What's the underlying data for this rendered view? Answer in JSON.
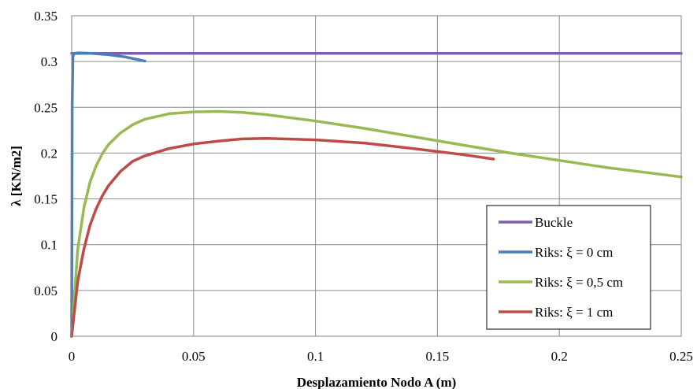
{
  "chart_data": {
    "type": "line",
    "xlabel": "Desplazamiento Nodo A (m)",
    "ylabel": "λ [KN/m2]",
    "xlim": [
      0,
      0.25
    ],
    "ylim": [
      0,
      0.35
    ],
    "xticks": [
      0,
      0.05,
      0.1,
      0.15,
      0.2,
      0.25
    ],
    "xtick_labels": [
      "0",
      "0.05",
      "0.1",
      "0.15",
      "0.2",
      "0.25"
    ],
    "yticks": [
      0,
      0.05,
      0.1,
      0.15,
      0.2,
      0.25,
      0.3,
      0.35
    ],
    "ytick_labels": [
      "0",
      "0.05",
      "0.1",
      "0.15",
      "0.2",
      "0.25",
      "0.3",
      "0.35"
    ],
    "grid": true,
    "legend_position": "bottom-right",
    "series": [
      {
        "name": "Buckle",
        "color": "#7F5FA8",
        "x": [
          0,
          0.25
        ],
        "y": [
          0.309,
          0.309
        ]
      },
      {
        "name": "Riks: ξ = 0 cm",
        "color": "#4A7EBB",
        "x": [
          0,
          0.0001,
          0.0002,
          0.0005,
          0.001,
          0.003,
          0.008,
          0.015,
          0.022,
          0.03
        ],
        "y": [
          0,
          0.1,
          0.25,
          0.305,
          0.309,
          0.3095,
          0.309,
          0.3075,
          0.305,
          0.3005
        ]
      },
      {
        "name": "Riks: ξ = 0,5 cm",
        "color": "#98B954",
        "x": [
          0,
          0.0025,
          0.005,
          0.0075,
          0.01,
          0.0125,
          0.015,
          0.02,
          0.025,
          0.03,
          0.04,
          0.05,
          0.06,
          0.07,
          0.08,
          0.1,
          0.12,
          0.14,
          0.16,
          0.18,
          0.2,
          0.22,
          0.25
        ],
        "y": [
          0,
          0.095,
          0.14,
          0.168,
          0.186,
          0.199,
          0.209,
          0.222,
          0.231,
          0.237,
          0.243,
          0.245,
          0.2455,
          0.2445,
          0.242,
          0.235,
          0.227,
          0.218,
          0.209,
          0.2,
          0.192,
          0.184,
          0.174
        ]
      },
      {
        "name": "Riks: ξ = 1 cm",
        "color": "#BE4B48",
        "x": [
          0,
          0.0025,
          0.005,
          0.0075,
          0.01,
          0.0125,
          0.015,
          0.02,
          0.025,
          0.03,
          0.04,
          0.05,
          0.06,
          0.07,
          0.08,
          0.1,
          0.12,
          0.14,
          0.16,
          0.173
        ],
        "y": [
          0,
          0.06,
          0.095,
          0.121,
          0.139,
          0.153,
          0.164,
          0.18,
          0.191,
          0.197,
          0.205,
          0.21,
          0.213,
          0.2155,
          0.216,
          0.2145,
          0.211,
          0.205,
          0.1985,
          0.1935
        ]
      }
    ]
  }
}
